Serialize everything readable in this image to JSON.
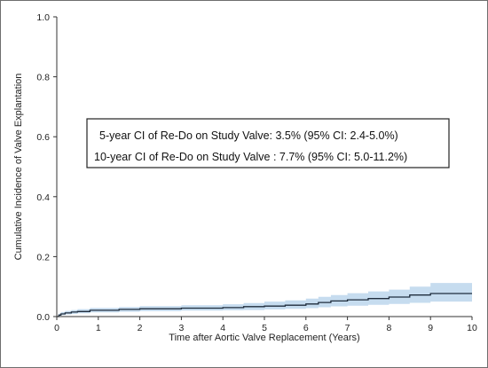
{
  "chart_data": {
    "type": "line",
    "title": "",
    "xlabel": "Time after Aortic Valve Replacement (Years)",
    "ylabel": "Cumulative Incidence of Valve Explantation",
    "xlim": [
      0,
      10
    ],
    "ylim": [
      0,
      1.0
    ],
    "x_ticks": [
      "0",
      "1",
      "2",
      "3",
      "4",
      "5",
      "6",
      "7",
      "8",
      "9",
      "10"
    ],
    "y_ticks": [
      "0.0",
      "0.2",
      "0.4",
      "0.6",
      "0.8",
      "1.0"
    ],
    "grid": false,
    "colors": {
      "line": "#1f2d3d",
      "band": "#c6dcef",
      "axis": "#333333"
    },
    "annotations": [
      "5-year CI of Re-Do on Study Valve: 3.5% (95% CI: 2.4-5.0%)",
      "10-year CI of Re-Do on Study Valve : 7.7% (95% CI: 5.0-11.2%)"
    ],
    "series": [
      {
        "type": "step",
        "x": [
          0,
          0.05,
          0.1,
          0.2,
          0.35,
          0.5,
          0.8,
          1.5,
          2.0,
          3.0,
          4.0,
          4.5,
          5.0,
          5.5,
          6.0,
          6.3,
          6.6,
          7.0,
          7.5,
          8.0,
          8.5,
          9.0,
          10.0
        ],
        "values": [
          0.0,
          0.005,
          0.009,
          0.012,
          0.015,
          0.017,
          0.021,
          0.024,
          0.026,
          0.028,
          0.03,
          0.033,
          0.035,
          0.038,
          0.042,
          0.047,
          0.052,
          0.056,
          0.06,
          0.065,
          0.072,
          0.077,
          0.077
        ],
        "lower": [
          0.0,
          0.002,
          0.005,
          0.007,
          0.009,
          0.011,
          0.014,
          0.016,
          0.018,
          0.02,
          0.021,
          0.022,
          0.024,
          0.026,
          0.028,
          0.031,
          0.034,
          0.036,
          0.039,
          0.042,
          0.046,
          0.05,
          0.05
        ],
        "upper": [
          0.0,
          0.01,
          0.015,
          0.019,
          0.022,
          0.025,
          0.029,
          0.032,
          0.035,
          0.038,
          0.041,
          0.045,
          0.05,
          0.054,
          0.06,
          0.066,
          0.072,
          0.078,
          0.084,
          0.09,
          0.1,
          0.112,
          0.112
        ]
      }
    ]
  }
}
